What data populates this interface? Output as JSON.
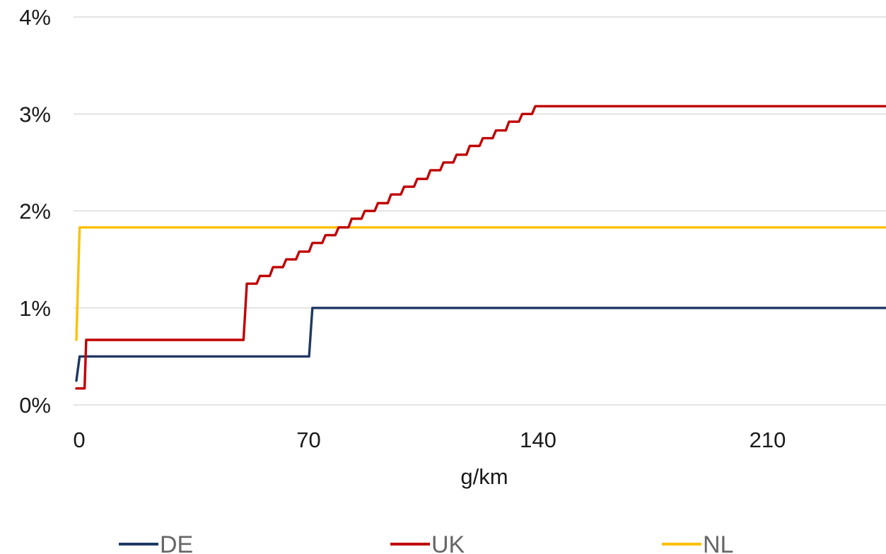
{
  "chart_data": {
    "type": "line",
    "title": "",
    "xlabel": "g/km",
    "ylabel": "",
    "xlim": [
      0,
      250
    ],
    "ylim": [
      0,
      4
    ],
    "x_ticks": [
      0,
      70,
      140,
      210
    ],
    "x_tick_labels": [
      "0",
      "70",
      "140",
      "210"
    ],
    "y_ticks": [
      0,
      1,
      2,
      3,
      4
    ],
    "y_tick_labels": [
      "0%",
      "1%",
      "2%",
      "3%",
      "4%"
    ],
    "grid": "horizontal",
    "legend_position": "bottom",
    "series": [
      {
        "name": "DE",
        "color": "#1f3864",
        "points": [
          [
            0,
            0.25
          ],
          [
            1,
            0.5
          ],
          [
            71,
            0.5
          ],
          [
            72,
            1.0
          ],
          [
            250,
            1.0
          ]
        ]
      },
      {
        "name": "UK",
        "color": "#c00000",
        "points": [
          [
            0,
            0.17
          ],
          [
            2.5,
            0.17
          ],
          [
            3,
            0.67
          ],
          [
            51,
            0.67
          ],
          [
            52,
            1.25
          ],
          [
            55,
            1.25
          ],
          [
            56,
            1.33
          ],
          [
            59,
            1.33
          ],
          [
            60,
            1.42
          ],
          [
            63,
            1.42
          ],
          [
            64,
            1.5
          ],
          [
            67,
            1.5
          ],
          [
            68,
            1.58
          ],
          [
            71,
            1.58
          ],
          [
            72,
            1.67
          ],
          [
            75,
            1.67
          ],
          [
            76,
            1.75
          ],
          [
            79,
            1.75
          ],
          [
            80,
            1.83
          ],
          [
            83,
            1.83
          ],
          [
            84,
            1.92
          ],
          [
            87,
            1.92
          ],
          [
            88,
            2.0
          ],
          [
            91,
            2.0
          ],
          [
            92,
            2.08
          ],
          [
            95,
            2.08
          ],
          [
            96,
            2.17
          ],
          [
            99,
            2.17
          ],
          [
            100,
            2.25
          ],
          [
            103,
            2.25
          ],
          [
            104,
            2.33
          ],
          [
            107,
            2.33
          ],
          [
            108,
            2.42
          ],
          [
            111,
            2.42
          ],
          [
            112,
            2.5
          ],
          [
            115,
            2.5
          ],
          [
            116,
            2.58
          ],
          [
            119,
            2.58
          ],
          [
            120,
            2.67
          ],
          [
            123,
            2.67
          ],
          [
            124,
            2.75
          ],
          [
            127,
            2.75
          ],
          [
            128,
            2.83
          ],
          [
            131,
            2.83
          ],
          [
            132,
            2.92
          ],
          [
            135,
            2.92
          ],
          [
            136,
            3.0
          ],
          [
            139,
            3.0
          ],
          [
            140,
            3.08
          ],
          [
            250,
            3.08
          ]
        ]
      },
      {
        "name": "NL",
        "color": "#ffc000",
        "points": [
          [
            0,
            0.67
          ],
          [
            1,
            1.83
          ],
          [
            250,
            1.83
          ]
        ]
      }
    ]
  }
}
